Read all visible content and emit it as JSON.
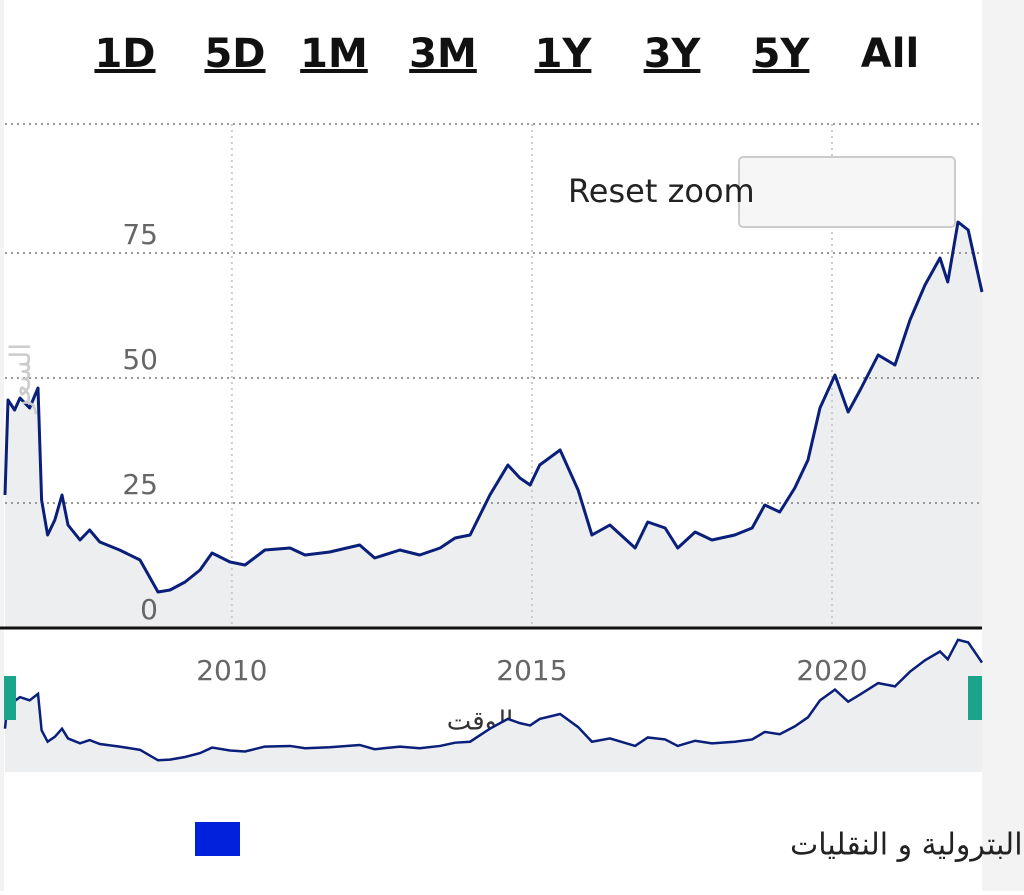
{
  "range_selector": {
    "buttons": [
      "1D",
      "5D",
      "1M",
      "3M",
      "1Y",
      "3Y",
      "5Y",
      "All"
    ]
  },
  "reset_zoom": "Reset zoom",
  "chart_data": {
    "type": "line",
    "x_label": "الوقت",
    "y_label": "السعر",
    "x": [
      2006.22,
      2006.27,
      2006.38,
      2006.47,
      2006.63,
      2006.77,
      2006.83,
      2006.93,
      2007.05,
      2007.17,
      2007.27,
      2007.47,
      2007.63,
      2007.8,
      2008.13,
      2008.47,
      2008.77,
      2008.97,
      2009.22,
      2009.47,
      2009.67,
      2009.97,
      2010.22,
      2010.55,
      2010.97,
      2011.22,
      2011.63,
      2012.13,
      2012.38,
      2012.8,
      2013.13,
      2013.47,
      2013.72,
      2013.97,
      2014.3,
      2014.6,
      2014.8,
      2014.97,
      2015.13,
      2015.47,
      2015.77,
      2016,
      2016.3,
      2016.72,
      2016.93,
      2017.22,
      2017.43,
      2017.72,
      2018,
      2018.38,
      2018.67,
      2018.88,
      2019.13,
      2019.38,
      2019.6,
      2019.8,
      2020.05,
      2020.27,
      2020.47,
      2020.77,
      2021.05,
      2021.3,
      2021.55,
      2021.8,
      2021.93,
      2022.1,
      2022.27,
      2022.5
    ],
    "series": [
      {
        "name": "شركة الدريس للخدمات البترولية و النقليات",
        "color": "#0a1f7a",
        "legend_color": "#0022dd",
        "values": [
          26.6,
          45.6,
          43.6,
          46,
          44,
          48,
          25.6,
          18.6,
          21.6,
          26.6,
          20.6,
          17.6,
          19.6,
          17.2,
          15.6,
          13.6,
          7.2,
          7.6,
          9.2,
          11.6,
          15,
          13.2,
          12.6,
          15.6,
          16,
          14.6,
          15.2,
          16.6,
          14,
          15.6,
          14.6,
          16,
          18,
          18.6,
          26.6,
          32.6,
          30,
          28.6,
          32.6,
          35.6,
          27.6,
          18.6,
          20.6,
          16,
          21.2,
          20,
          16,
          19.2,
          17.6,
          18.6,
          20,
          24.6,
          23.2,
          28,
          33.6,
          44,
          50.6,
          43.2,
          47.6,
          54.6,
          52.6,
          61.6,
          68.6,
          74,
          69.2,
          81.2,
          79.6,
          67.2
        ]
      }
    ],
    "xlim": [
      2006.22,
      2022.5
    ],
    "xticks": [
      2010,
      2015,
      2020
    ],
    "ylim": [
      0,
      100
    ],
    "yticks": [
      0,
      25,
      50,
      75
    ],
    "grid": true
  }
}
